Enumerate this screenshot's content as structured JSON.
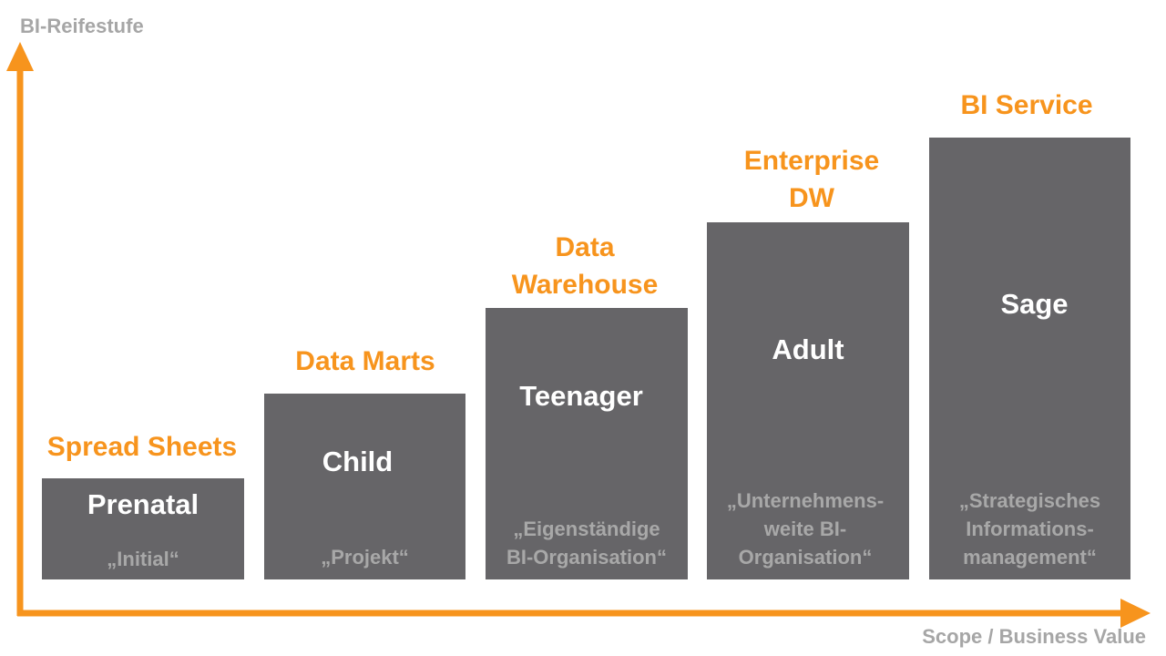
{
  "axes": {
    "y_label": "BI-Reifestufe",
    "x_label": "Scope / Business Value",
    "accent_color": "#f7941d"
  },
  "stages": [
    {
      "category": "Spread Sheets",
      "maturity": "Prenatal",
      "organization": "„Initial“"
    },
    {
      "category": "Data Marts",
      "maturity": "Child",
      "organization": "„Projekt“"
    },
    {
      "category": "Data\nWarehouse",
      "maturity": "Teenager",
      "organization": "„Eigenständige\nBI-Organisation“"
    },
    {
      "category": "Enterprise\nDW",
      "maturity": "Adult",
      "organization": "„Unternehmens-\nweite BI-\nOrganisation“"
    },
    {
      "category": "BI Service",
      "maturity": "Sage",
      "organization": "„Strategisches\nInformations-\nmanagement“"
    }
  ],
  "colors": {
    "column": "#666568",
    "category_text": "#f7941d",
    "maturity_text": "#ffffff",
    "organization_text": "#a8a8a8",
    "axis_label_text": "#a6a6a6"
  }
}
